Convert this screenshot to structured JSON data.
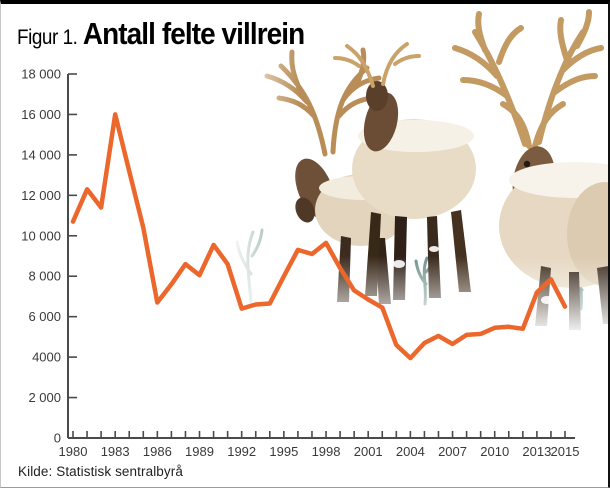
{
  "figure": {
    "label": "Figur 1.",
    "title": "Antall felte villrein",
    "source": "Kilde: Statistisk sentralbyrå",
    "photo_alt": "villrein-herd-in-snow-photo"
  },
  "chart_data": {
    "type": "line",
    "title": "Antall felte villrein",
    "xlabel": "",
    "ylabel": "",
    "grid": false,
    "legend": "none",
    "line_color": "#ec672c",
    "axis_color": "#4a4a4a",
    "xlim": [
      1980,
      2015
    ],
    "ylim": [
      0,
      18000
    ],
    "x": [
      1980,
      1981,
      1982,
      1983,
      1984,
      1985,
      1986,
      1987,
      1988,
      1989,
      1990,
      1991,
      1992,
      1993,
      1994,
      1995,
      1996,
      1997,
      1998,
      1999,
      2000,
      2001,
      2002,
      2003,
      2004,
      2005,
      2006,
      2007,
      2008,
      2009,
      2010,
      2011,
      2012,
      2013,
      2014,
      2015
    ],
    "values": [
      10700,
      12300,
      11400,
      16000,
      13200,
      10400,
      6700,
      7600,
      8600,
      8050,
      9550,
      8600,
      6400,
      6600,
      6650,
      8000,
      9300,
      9100,
      9650,
      8400,
      7300,
      6850,
      6450,
      4600,
      3950,
      4700,
      5050,
      4650,
      5100,
      5150,
      5450,
      5500,
      5400,
      7200,
      7850,
      6500
    ],
    "y_tick_labels": [
      "18 000",
      "16 000",
      "14 000",
      "12 000",
      "10 000",
      "8 000",
      "6 000",
      "4000",
      "2 000",
      "0"
    ],
    "y_tick_values": [
      18000,
      16000,
      14000,
      12000,
      10000,
      8000,
      6000,
      4000,
      2000,
      0
    ],
    "x_tick_labels": [
      "1980",
      "1983",
      "1986",
      "1989",
      "1992",
      "1995",
      "1998",
      "2001",
      "2004",
      "2007",
      "2010",
      "2013",
      "2015"
    ],
    "x_tick_years": [
      1980,
      1983,
      1986,
      1989,
      1992,
      1995,
      1998,
      2001,
      2004,
      2007,
      2010,
      2013,
      2015
    ]
  }
}
